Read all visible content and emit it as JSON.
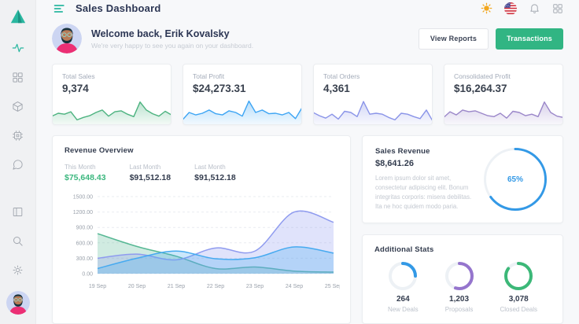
{
  "header": {
    "title": "Sales Dashboard"
  },
  "theme": {
    "teal": "#2ab7a0",
    "button_green": "#31b583",
    "donut_track": "#edf1f5"
  },
  "welcome": {
    "title": "Welcome back, Erik Kovalsky",
    "subtitle": "We're very happy to see you again on your dashboard.",
    "view_reports_label": "View Reports",
    "transactions_label": "Transactions"
  },
  "stat_cards": [
    {
      "label": "Total Sales",
      "value": "9,374",
      "color": "#4db380",
      "spark": [
        30,
        42,
        38,
        48,
        15,
        25,
        32,
        45,
        55,
        30,
        48,
        52,
        38,
        28,
        88,
        55,
        40,
        30,
        50,
        35
      ]
    },
    {
      "label": "Total Profit",
      "value": "$24,273.31",
      "color": "#3da5f4",
      "spark": [
        15,
        45,
        35,
        42,
        55,
        40,
        35,
        52,
        45,
        30,
        92,
        45,
        55,
        40,
        42,
        35,
        45,
        20,
        65
      ]
    },
    {
      "label": "Total Orders",
      "value": "4,361",
      "color": "#8a94e8",
      "spark": [
        45,
        32,
        22,
        38,
        18,
        50,
        45,
        28,
        90,
        38,
        42,
        38,
        25,
        15,
        42,
        38,
        28,
        20,
        55,
        10
      ]
    },
    {
      "label": "Consolidated Profit",
      "value": "$16,264.37",
      "color": "#9b87c9",
      "spark": [
        25,
        48,
        35,
        55,
        48,
        52,
        42,
        32,
        28,
        42,
        22,
        50,
        45,
        32,
        38,
        28,
        88,
        45,
        30,
        25
      ]
    }
  ],
  "revenue_overview": {
    "title": "Revenue Overview",
    "stats": [
      {
        "label": "This Month",
        "value": "$75,648.43",
        "color": "#3bb77e"
      },
      {
        "label": "Last Month",
        "value": "$91,512.18",
        "color": "#333c4e"
      },
      {
        "label": "Last Month",
        "value": "$91,512.18",
        "color": "#333c4e"
      }
    ],
    "chart_data": {
      "type": "area",
      "x": [
        "19 Sep",
        "20 Sep",
        "21 Sep",
        "22 Sep",
        "23 Sep",
        "24 Sep",
        "25 Sep"
      ],
      "y_ticks": [
        "1500.00",
        "1200.00",
        "900.00",
        "600.00",
        "300.00",
        "0.00"
      ],
      "ylim": [
        0,
        1500
      ],
      "grid": true,
      "series": [
        {
          "name": "green",
          "color": "#57b894",
          "values": [
            780,
            530,
            340,
            100,
            130,
            50,
            30
          ]
        },
        {
          "name": "purple",
          "color": "#8f9bef",
          "values": [
            300,
            380,
            270,
            500,
            440,
            1200,
            1000
          ]
        },
        {
          "name": "blue",
          "color": "#46aaf0",
          "values": [
            100,
            300,
            440,
            290,
            310,
            520,
            400
          ]
        }
      ]
    }
  },
  "sales_revenue": {
    "title": "Sales Revenue",
    "value": "$8,641.26",
    "description": "Lorem ipsum dolor sit amet, consectetur adipiscing elit. Bonum integritas corporis: misera debilitas. Ita ne hoc quidem modo paria.",
    "donut": {
      "percent": 65,
      "label": "65%",
      "color": "#3399e6"
    }
  },
  "additional_stats": {
    "title": "Additional Stats",
    "items": [
      {
        "value": "264",
        "label": "New Deals",
        "percent": 25,
        "color": "#3399e6"
      },
      {
        "value": "1,203",
        "label": "Proposals",
        "percent": 55,
        "color": "#9575cd"
      },
      {
        "value": "3,078",
        "label": "Closed Deals",
        "percent": 85,
        "color": "#3cb878"
      }
    ]
  }
}
